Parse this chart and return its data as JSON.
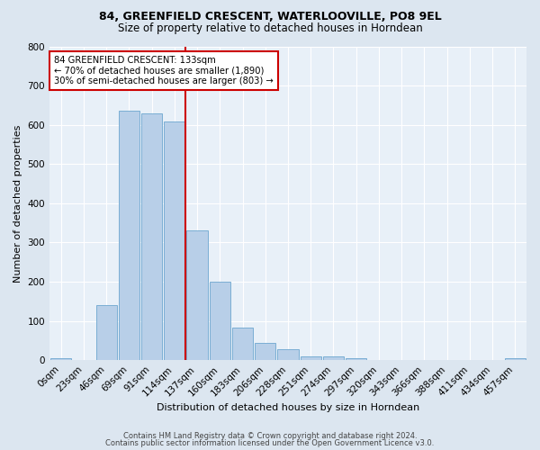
{
  "title1": "84, GREENFIELD CRESCENT, WATERLOOVILLE, PO8 9EL",
  "title2": "Size of property relative to detached houses in Horndean",
  "xlabel": "Distribution of detached houses by size in Horndean",
  "ylabel": "Number of detached properties",
  "bar_labels": [
    "0sqm",
    "23sqm",
    "46sqm",
    "69sqm",
    "91sqm",
    "114sqm",
    "137sqm",
    "160sqm",
    "183sqm",
    "206sqm",
    "228sqm",
    "251sqm",
    "274sqm",
    "297sqm",
    "320sqm",
    "343sqm",
    "366sqm",
    "388sqm",
    "411sqm",
    "434sqm",
    "457sqm"
  ],
  "bar_values": [
    5,
    0,
    140,
    635,
    628,
    608,
    330,
    200,
    83,
    44,
    27,
    10,
    10,
    5,
    0,
    0,
    0,
    0,
    0,
    0,
    5
  ],
  "bar_color": "#b8cfe8",
  "bar_edgecolor": "#7aaed4",
  "vline_color": "#cc0000",
  "annotation_text": "84 GREENFIELD CRESCENT: 133sqm\n← 70% of detached houses are smaller (1,890)\n30% of semi-detached houses are larger (803) →",
  "annotation_box_color": "white",
  "annotation_box_edgecolor": "#cc0000",
  "ylim": [
    0,
    800
  ],
  "yticks": [
    0,
    100,
    200,
    300,
    400,
    500,
    600,
    700,
    800
  ],
  "footer1": "Contains HM Land Registry data © Crown copyright and database right 2024.",
  "footer2": "Contains public sector information licensed under the Open Government Licence v3.0.",
  "bg_color": "#dce6f0",
  "plot_bg_color": "#e8f0f8",
  "title1_fontsize": 9.0,
  "title2_fontsize": 8.5,
  "xlabel_fontsize": 8.0,
  "ylabel_fontsize": 8.0,
  "tick_fontsize": 7.5,
  "annot_fontsize": 7.2,
  "footer_fontsize": 6.0
}
